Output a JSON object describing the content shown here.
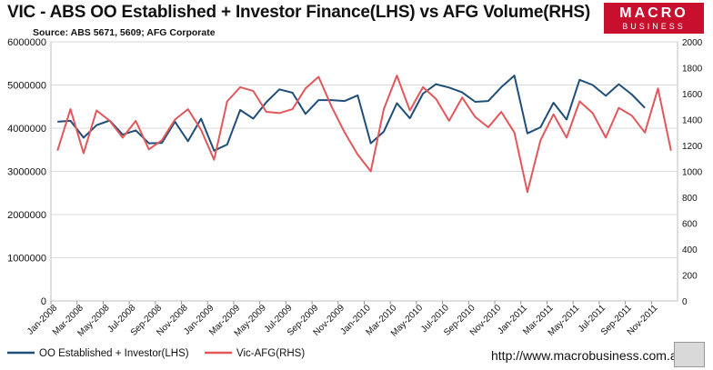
{
  "header": {
    "title": "VIC - ABS OO Established + Investor Finance(LHS) vs AFG Volume(RHS)",
    "source": "Source: ABS 5671, 5609; AFG Corporate"
  },
  "logo": {
    "line1": "MACRO",
    "line2": "BUSINESS",
    "background": "#c8102e"
  },
  "footer": {
    "url": "http://www.macrobusiness.com.au"
  },
  "chart_data": {
    "type": "line",
    "title": "VIC - ABS OO Established + Investor Finance(LHS) vs AFG Volume(RHS)",
    "months_count": 48,
    "x_tick_labels": [
      "Jan-2008",
      "Mar-2008",
      "May-2008",
      "Jul-2008",
      "Sep-2008",
      "Nov-2008",
      "Jan-2009",
      "Mar-2009",
      "May-2009",
      "Jul-2009",
      "Sep-2009",
      "Nov-2009",
      "Jan-2010",
      "Mar-2010",
      "May-2010",
      "Jul-2010",
      "Sep-2010",
      "Nov-2010",
      "Jan-2011",
      "Mar-2011",
      "May-2011",
      "Jul-2011",
      "Sep-2011",
      "Nov-2011"
    ],
    "left_axis": {
      "min": 0,
      "max": 6000000,
      "ticks": [
        0,
        1000000,
        2000000,
        3000000,
        4000000,
        5000000,
        6000000
      ]
    },
    "right_axis": {
      "min": 0,
      "max": 2000,
      "ticks": [
        0,
        200,
        400,
        600,
        800,
        1000,
        1200,
        1400,
        1600,
        1800,
        2000
      ]
    },
    "grid": true,
    "legend_position": "bottom-left",
    "series": [
      {
        "name": "OO Established + Investor(LHS)",
        "axis": "left",
        "color": "#1f4e79",
        "values": [
          4150000,
          4170000,
          3780000,
          4070000,
          4180000,
          3850000,
          3950000,
          3650000,
          3660000,
          4150000,
          3700000,
          4220000,
          3480000,
          3620000,
          4420000,
          4220000,
          4600000,
          4900000,
          4820000,
          4330000,
          4650000,
          4650000,
          4630000,
          4760000,
          3650000,
          3920000,
          4580000,
          4230000,
          4800000,
          5020000,
          4940000,
          4830000,
          4610000,
          4630000,
          4950000,
          5220000,
          3880000,
          4020000,
          4590000,
          4200000,
          5120000,
          5000000,
          4750000,
          5020000,
          4780000,
          4470000,
          null,
          null
        ]
      },
      {
        "name": "Vic-AFG(RHS)",
        "axis": "right",
        "color": "#e0585b",
        "values": [
          1160,
          1480,
          1140,
          1470,
          1390,
          1260,
          1390,
          1170,
          1240,
          1400,
          1480,
          1320,
          1090,
          1540,
          1650,
          1620,
          1460,
          1450,
          1480,
          1640,
          1730,
          1500,
          1300,
          1130,
          1000,
          1480,
          1740,
          1470,
          1650,
          1560,
          1390,
          1570,
          1420,
          1340,
          1460,
          1300,
          840,
          1240,
          1440,
          1260,
          1540,
          1450,
          1260,
          1490,
          1430,
          1300,
          1640,
          1160
        ]
      }
    ]
  }
}
